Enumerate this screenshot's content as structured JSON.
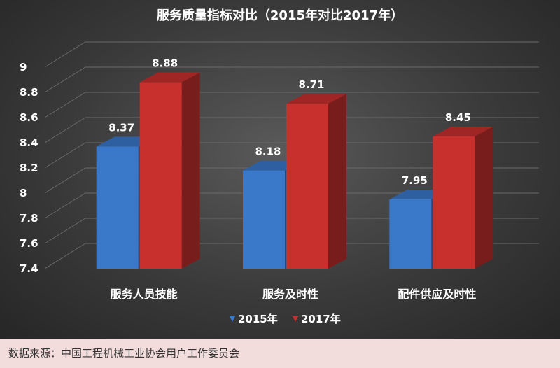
{
  "chart_data": {
    "type": "bar",
    "title": "服务质量指标对比（2015年对比2017年）",
    "categories": [
      "服务人员技能",
      "服务及时性",
      "配件供应及时性"
    ],
    "series": [
      {
        "name": "2015年",
        "values": [
          8.37,
          8.18,
          7.95
        ],
        "color": "#3a78c9"
      },
      {
        "name": "2017年",
        "values": [
          8.88,
          8.71,
          8.45
        ],
        "color": "#c8302e"
      }
    ],
    "ylim": [
      7.4,
      9.0
    ],
    "yticks": [
      "7.4",
      "7.6",
      "7.8",
      "8",
      "8.2",
      "8.4",
      "8.6",
      "8.8",
      "9"
    ],
    "grid": true,
    "legend_position": "bottom"
  },
  "footer": {
    "source_text": "数据来源：中国工程机械工业协会用户工作委员会"
  }
}
